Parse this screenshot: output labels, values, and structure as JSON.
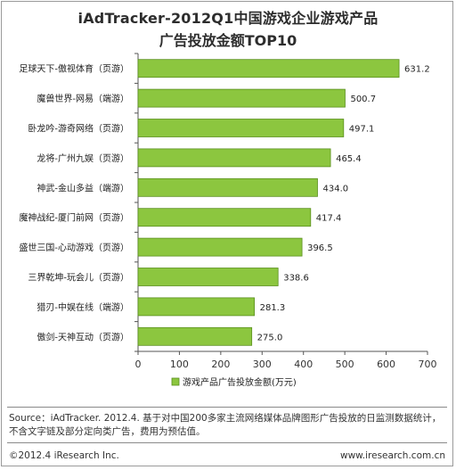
{
  "title_line1": "iAdTracker-2012Q1中国游戏企业游戏产品",
  "title_line2": "广告投放金额TOP10",
  "source_line1": "Source：iAdTracker. 2012.4. 基于对中国200多家主流网络媒体品牌图形广告投放的日监测数据统计，",
  "source_line2": "不含文字链及部分定向类广告，费用为预估值。",
  "copyright": "©2012.4 iResearch Inc.",
  "website": "www.iresearch.com.cn",
  "colors": {
    "bar": "#8cc63f",
    "bar_edge": "#5a8f1e",
    "axis": "#555555"
  },
  "chart_data": {
    "type": "bar",
    "orientation": "horizontal",
    "categories": [
      "足球天下-傲视体育（页游）",
      "魔兽世界-网易（端游）",
      "卧龙吟-游奇网络（页游）",
      "龙将-广州九娱（页游）",
      "神武-金山多益（端游）",
      "魔神战纪-厦门前网（页游）",
      "盛世三国-心动游戏（页游）",
      "三界乾坤-玩会儿（页游）",
      "猎刃-中娱在线（端游）",
      "傲剑-天神互动（页游）"
    ],
    "series": [
      {
        "name": "游戏产品广告投放金额(万元)",
        "values": [
          631.2,
          500.7,
          497.1,
          465.4,
          434.0,
          417.4,
          396.5,
          338.6,
          281.3,
          275.0
        ],
        "value_labels": [
          "631.2",
          "500.7",
          "497.1",
          "465.4",
          "434.0",
          "417.4",
          "396.5",
          "338.6",
          "281.3",
          "275.0"
        ]
      }
    ],
    "xlim": [
      0,
      700
    ],
    "xticks": [
      0,
      100,
      200,
      300,
      400,
      500,
      600,
      700
    ],
    "xtick_labels": [
      "0",
      "100",
      "200",
      "300",
      "400",
      "500",
      "600",
      "700"
    ],
    "legend_position": "bottom"
  }
}
